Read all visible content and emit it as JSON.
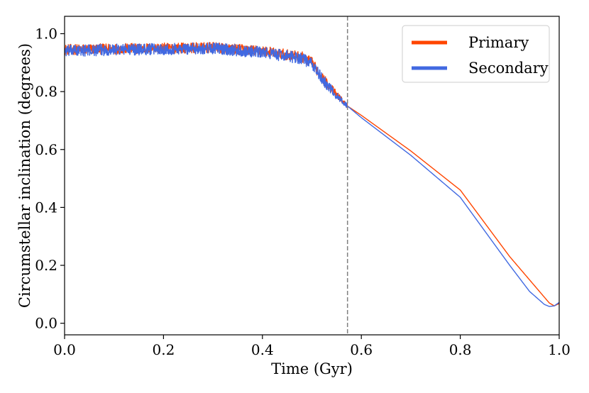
{
  "chart_data": {
    "type": "line",
    "title": "",
    "xlabel": "Time (Gyr)",
    "ylabel": "Circumstellar inclination (degrees)",
    "xlim": [
      0.0,
      1.0
    ],
    "ylim": [
      -0.04,
      1.06
    ],
    "xticks": [
      0.0,
      0.2,
      0.4,
      0.6,
      0.8,
      1.0
    ],
    "xtick_labels": [
      "0.0",
      "0.2",
      "0.4",
      "0.6",
      "0.8",
      "1.0"
    ],
    "yticks": [
      0.0,
      0.2,
      0.4,
      0.6,
      0.8,
      1.0
    ],
    "ytick_labels": [
      "0.0",
      "0.2",
      "0.4",
      "0.6",
      "0.8",
      "1.0"
    ],
    "vline_x": 0.572,
    "legend_position": "top-right",
    "grid": false,
    "series": [
      {
        "name": "Primary",
        "color": "#ff4500",
        "noise_amplitude": 0.018,
        "noise_until": 0.572,
        "x": [
          0.0,
          0.1,
          0.2,
          0.3,
          0.4,
          0.48,
          0.5,
          0.52,
          0.55,
          0.572,
          0.6,
          0.7,
          0.8,
          0.9,
          0.95,
          0.98,
          0.99,
          1.0
        ],
        "y": [
          0.945,
          0.948,
          0.95,
          0.952,
          0.94,
          0.92,
          0.9,
          0.85,
          0.79,
          0.75,
          0.718,
          0.595,
          0.46,
          0.23,
          0.13,
          0.07,
          0.06,
          0.068
        ]
      },
      {
        "name": "Secondary",
        "color": "#4169e1",
        "noise_amplitude": 0.02,
        "noise_until": 0.572,
        "x": [
          0.0,
          0.1,
          0.2,
          0.3,
          0.4,
          0.48,
          0.5,
          0.52,
          0.55,
          0.572,
          0.6,
          0.7,
          0.8,
          0.9,
          0.94,
          0.97,
          0.98,
          0.99,
          1.0
        ],
        "y": [
          0.94,
          0.945,
          0.947,
          0.95,
          0.935,
          0.915,
          0.895,
          0.845,
          0.785,
          0.75,
          0.71,
          0.58,
          0.435,
          0.2,
          0.11,
          0.065,
          0.058,
          0.06,
          0.072
        ]
      }
    ]
  }
}
